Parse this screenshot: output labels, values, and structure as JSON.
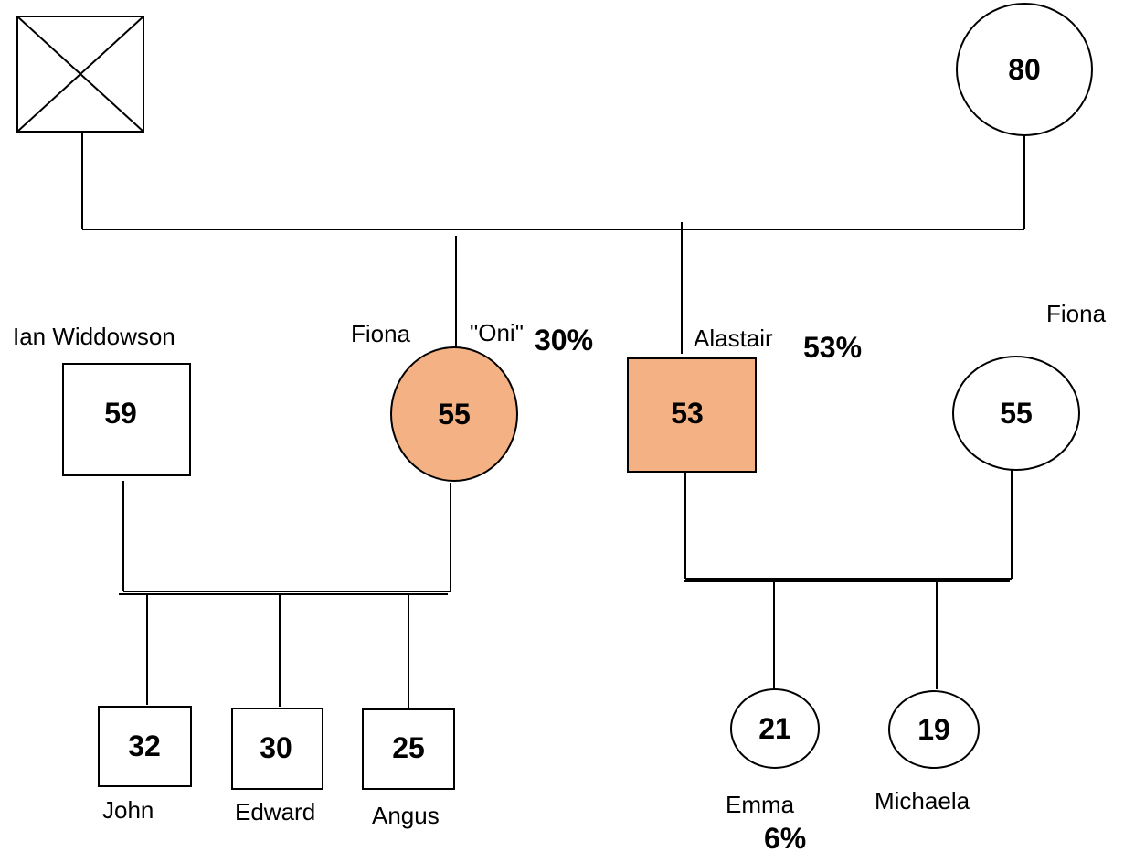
{
  "colors": {
    "affected_fill": "#f4b183",
    "line": "#000000",
    "unaffected_fill": "#ffffff"
  },
  "nodes": {
    "grandfather": {
      "shape": "square",
      "deceased": true,
      "age": ""
    },
    "grandmother": {
      "shape": "circle",
      "age": "80"
    },
    "ian": {
      "shape": "square",
      "name": "Ian Widdowson",
      "age": "59"
    },
    "fiona_oni": {
      "shape": "circle",
      "name": "Fiona",
      "nickname": "\"Oni\"",
      "age": "55",
      "percent": "30%",
      "affected": true
    },
    "alastair": {
      "shape": "square",
      "name": "Alastair",
      "age": "53",
      "percent": "53%",
      "affected": true
    },
    "fiona_wife": {
      "shape": "circle",
      "name": "Fiona",
      "age": "55"
    },
    "john": {
      "shape": "square",
      "name": "John",
      "age": "32"
    },
    "edward": {
      "shape": "square",
      "name": "Edward",
      "age": "30"
    },
    "angus": {
      "shape": "square",
      "name": "Angus",
      "age": "25"
    },
    "emma": {
      "shape": "circle",
      "name": "Emma",
      "age": "21",
      "percent": "6%"
    },
    "michaela": {
      "shape": "circle",
      "name": "Michaela",
      "age": "19"
    }
  }
}
